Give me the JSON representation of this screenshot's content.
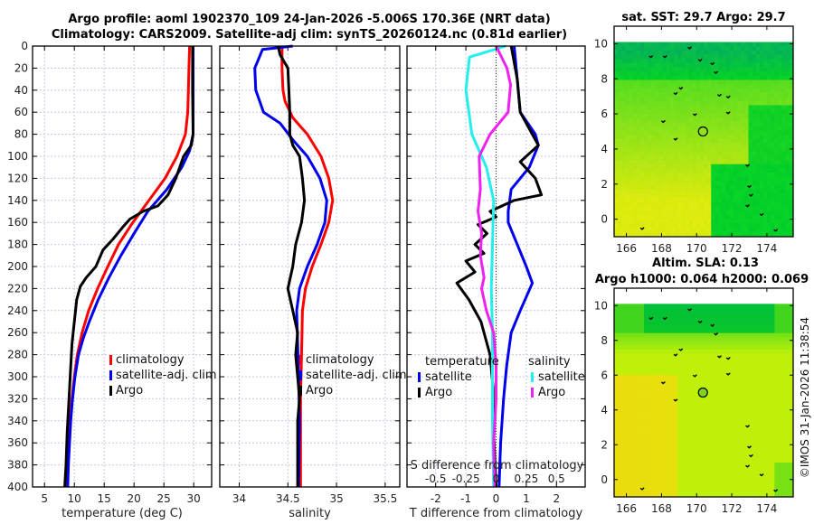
{
  "header": {
    "title_line1": "Argo profile: aoml 1902370_109 24-Jan-2026 -5.006S 170.36E (NRT data)",
    "title_line2": "Climatology: CARS2009. Satellite-adj clim: synTS_20260124.nc (0.81d earlier)"
  },
  "colors": {
    "climatology": "#ff0000",
    "satellite": "#0000ee",
    "argo": "#000000",
    "sal_satellite": "#22eeee",
    "sal_argo": "#ee22ee",
    "grid": "#c8c8e0"
  },
  "chart_data": [
    {
      "type": "line",
      "name": "temperature-profile",
      "xlabel": "temperature (deg C)",
      "ylabel": "",
      "xlim": [
        3,
        33
      ],
      "ylim": [
        400,
        0
      ],
      "xticks": [
        5,
        10,
        15,
        20,
        25,
        30
      ],
      "yticks": [
        0,
        20,
        40,
        60,
        80,
        100,
        120,
        140,
        160,
        180,
        200,
        220,
        240,
        260,
        280,
        300,
        320,
        340,
        360,
        380,
        400
      ],
      "grid": true,
      "legend": {
        "position": "center-right",
        "entries": [
          "climatology",
          "satellite-adj. clim",
          "Argo"
        ]
      },
      "series": [
        {
          "name": "climatology",
          "color_key": "climatology",
          "points": [
            [
              29.3,
              0
            ],
            [
              29.2,
              20
            ],
            [
              29.1,
              40
            ],
            [
              29.0,
              60
            ],
            [
              28.6,
              80
            ],
            [
              27.2,
              100
            ],
            [
              25.2,
              120
            ],
            [
              22.5,
              140
            ],
            [
              19.8,
              160
            ],
            [
              17.4,
              180
            ],
            [
              15.6,
              200
            ],
            [
              13.9,
              220
            ],
            [
              12.4,
              240
            ],
            [
              11.3,
              260
            ],
            [
              10.5,
              280
            ],
            [
              10.0,
              300
            ],
            [
              9.6,
              320
            ],
            [
              9.3,
              340
            ],
            [
              9.1,
              360
            ],
            [
              8.9,
              380
            ],
            [
              8.8,
              400
            ]
          ]
        },
        {
          "name": "satellite-adj. clim",
          "color_key": "satellite",
          "points": [
            [
              29.9,
              0
            ],
            [
              29.9,
              20
            ],
            [
              29.9,
              40
            ],
            [
              29.9,
              60
            ],
            [
              29.9,
              80
            ],
            [
              29.3,
              95
            ],
            [
              28.0,
              110
            ],
            [
              25.5,
              130
            ],
            [
              22.3,
              150
            ],
            [
              20.0,
              170
            ],
            [
              17.8,
              190
            ],
            [
              15.8,
              210
            ],
            [
              14.0,
              230
            ],
            [
              12.5,
              250
            ],
            [
              11.5,
              265
            ],
            [
              10.7,
              280
            ],
            [
              10.1,
              300
            ],
            [
              9.7,
              320
            ],
            [
              9.4,
              340
            ],
            [
              9.2,
              360
            ],
            [
              9.0,
              380
            ],
            [
              8.9,
              400
            ]
          ]
        },
        {
          "name": "Argo",
          "color_key": "argo",
          "points": [
            [
              29.8,
              0
            ],
            [
              29.8,
              40
            ],
            [
              29.9,
              80
            ],
            [
              29.6,
              90
            ],
            [
              28.3,
              100
            ],
            [
              27.0,
              120
            ],
            [
              25.7,
              135
            ],
            [
              24.0,
              145
            ],
            [
              21.5,
              150
            ],
            [
              19.3,
              157
            ],
            [
              18.0,
              165
            ],
            [
              16.5,
              175
            ],
            [
              14.8,
              185
            ],
            [
              13.6,
              200
            ],
            [
              12.0,
              210
            ],
            [
              11.0,
              218
            ],
            [
              10.4,
              230
            ],
            [
              10.0,
              250
            ],
            [
              9.6,
              270
            ],
            [
              9.3,
              300
            ],
            [
              9.1,
              320
            ],
            [
              8.8,
              350
            ],
            [
              8.6,
              380
            ],
            [
              8.4,
              400
            ]
          ]
        }
      ]
    },
    {
      "type": "line",
      "name": "salinity-profile",
      "xlabel": "salinity",
      "ylabel": "",
      "xlim": [
        33.8,
        35.65
      ],
      "ylim": [
        400,
        0
      ],
      "xticks": [
        34,
        34.5,
        35,
        35.5
      ],
      "xticklabels": [
        "34",
        "34.5",
        "35",
        "35.5"
      ],
      "grid": true,
      "legend": {
        "position": "center-right",
        "entries": [
          "climatology",
          "satellite-adj. clim",
          "Argo"
        ]
      },
      "series": [
        {
          "name": "climatology",
          "color_key": "climatology",
          "points": [
            [
              34.44,
              0
            ],
            [
              34.44,
              20
            ],
            [
              34.45,
              40
            ],
            [
              34.47,
              50
            ],
            [
              34.55,
              65
            ],
            [
              34.7,
              80
            ],
            [
              34.84,
              100
            ],
            [
              34.92,
              120
            ],
            [
              34.96,
              140
            ],
            [
              34.92,
              160
            ],
            [
              34.84,
              180
            ],
            [
              34.75,
              200
            ],
            [
              34.68,
              220
            ],
            [
              34.65,
              240
            ],
            [
              34.64,
              280
            ],
            [
              34.63,
              320
            ],
            [
              34.63,
              360
            ],
            [
              34.63,
              400
            ]
          ]
        },
        {
          "name": "satellite-adj. clim",
          "color_key": "satellite",
          "points": [
            [
              34.55,
              0
            ],
            [
              34.24,
              3
            ],
            [
              34.16,
              20
            ],
            [
              34.17,
              40
            ],
            [
              34.25,
              60
            ],
            [
              34.42,
              70
            ],
            [
              34.55,
              85
            ],
            [
              34.7,
              100
            ],
            [
              34.83,
              120
            ],
            [
              34.9,
              140
            ],
            [
              34.88,
              160
            ],
            [
              34.8,
              180
            ],
            [
              34.7,
              200
            ],
            [
              34.62,
              220
            ],
            [
              34.59,
              240
            ],
            [
              34.6,
              270
            ],
            [
              34.61,
              300
            ],
            [
              34.62,
              340
            ],
            [
              34.61,
              400
            ]
          ]
        },
        {
          "name": "Argo",
          "color_key": "argo",
          "points": [
            [
              34.4,
              0
            ],
            [
              34.42,
              8
            ],
            [
              34.5,
              20
            ],
            [
              34.51,
              40
            ],
            [
              34.52,
              60
            ],
            [
              34.52,
              80
            ],
            [
              34.55,
              90
            ],
            [
              34.62,
              100
            ],
            [
              34.65,
              120
            ],
            [
              34.67,
              140
            ],
            [
              34.64,
              160
            ],
            [
              34.58,
              180
            ],
            [
              34.55,
              200
            ],
            [
              34.5,
              220
            ],
            [
              34.55,
              240
            ],
            [
              34.6,
              260
            ],
            [
              34.58,
              280
            ],
            [
              34.6,
              300
            ],
            [
              34.62,
              320
            ],
            [
              34.6,
              340
            ],
            [
              34.6,
              400
            ]
          ]
        }
      ]
    },
    {
      "type": "line",
      "name": "difference-profile",
      "xlabel": "T difference from climatology",
      "xlabel_top": "S difference from climatology",
      "xlim": [
        -2.95,
        2.95
      ],
      "ylim": [
        400,
        0
      ],
      "xticks": [
        -2,
        -1,
        0,
        1,
        2
      ],
      "xticklabels": [
        "-2",
        "-1",
        "0",
        "1",
        "2"
      ],
      "s_xlim": [
        -0.738,
        0.738
      ],
      "s_xticks": [
        -0.5,
        -0.25,
        0,
        0.25,
        0.5
      ],
      "s_xticklabels": [
        "-0.5",
        "-0.25",
        "0",
        "0.25",
        "0.5"
      ],
      "grid": true,
      "zero_line": "dotted",
      "legend": {
        "position": "center",
        "groups": [
          {
            "heading": "temperature",
            "entries": [
              "satellite",
              "Argo"
            ]
          },
          {
            "heading": "salinity",
            "entries": [
              "satellite",
              "Argo"
            ]
          }
        ]
      },
      "series": [
        {
          "name": "temperature satellite",
          "axis": "T",
          "color_key": "satellite",
          "points": [
            [
              0.6,
              0
            ],
            [
              0.7,
              30
            ],
            [
              0.8,
              60
            ],
            [
              1.3,
              80
            ],
            [
              1.4,
              90
            ],
            [
              1.1,
              110
            ],
            [
              0.5,
              130
            ],
            [
              0.4,
              150
            ],
            [
              0.4,
              160
            ],
            [
              0.7,
              180
            ],
            [
              1.0,
              200
            ],
            [
              1.2,
              215
            ],
            [
              0.8,
              240
            ],
            [
              0.5,
              260
            ],
            [
              0.35,
              290
            ],
            [
              0.25,
              320
            ],
            [
              0.15,
              360
            ],
            [
              0.1,
              400
            ]
          ]
        },
        {
          "name": "temperature Argo",
          "axis": "T",
          "color_key": "argo",
          "points": [
            [
              0.5,
              0
            ],
            [
              0.7,
              30
            ],
            [
              0.8,
              60
            ],
            [
              1.2,
              80
            ],
            [
              1.4,
              90
            ],
            [
              0.8,
              105
            ],
            [
              1.3,
              120
            ],
            [
              1.5,
              135
            ],
            [
              0.6,
              140
            ],
            [
              -0.2,
              150
            ],
            [
              0.0,
              155
            ],
            [
              -0.6,
              162
            ],
            [
              -0.3,
              170
            ],
            [
              -0.7,
              180
            ],
            [
              -0.4,
              188
            ],
            [
              -1.0,
              195
            ],
            [
              -0.7,
              205
            ],
            [
              -1.3,
              215
            ],
            [
              -0.9,
              230
            ],
            [
              -0.5,
              250
            ],
            [
              -0.2,
              280
            ],
            [
              -0.1,
              310
            ],
            [
              -0.1,
              340
            ],
            [
              -0.05,
              370
            ],
            [
              0.0,
              400
            ]
          ]
        },
        {
          "name": "salinity satellite",
          "axis": "S",
          "color_key": "sal_satellite",
          "points": [
            [
              0.08,
              0
            ],
            [
              -0.22,
              10
            ],
            [
              -0.25,
              40
            ],
            [
              -0.2,
              80
            ],
            [
              -0.08,
              110
            ],
            [
              -0.02,
              140
            ],
            [
              -0.03,
              180
            ],
            [
              -0.04,
              220
            ],
            [
              -0.03,
              260
            ],
            [
              -0.03,
              300
            ],
            [
              -0.03,
              340
            ],
            [
              -0.02,
              400
            ]
          ]
        },
        {
          "name": "salinity Argo",
          "axis": "S",
          "color_key": "sal_argo",
          "points": [
            [
              0.0,
              0
            ],
            [
              0.09,
              20
            ],
            [
              0.12,
              35
            ],
            [
              0.1,
              60
            ],
            [
              -0.05,
              80
            ],
            [
              -0.14,
              100
            ],
            [
              -0.13,
              130
            ],
            [
              -0.15,
              150
            ],
            [
              -0.12,
              170
            ],
            [
              -0.13,
              190
            ],
            [
              -0.1,
              210
            ],
            [
              -0.12,
              220
            ],
            [
              -0.08,
              240
            ],
            [
              -0.02,
              260
            ],
            [
              0.0,
              290
            ],
            [
              0.0,
              320
            ],
            [
              -0.02,
              360
            ],
            [
              -0.01,
              400
            ]
          ]
        }
      ]
    },
    {
      "type": "heatmap",
      "name": "sst-map",
      "title": "sat. SST: 29.7 Argo: 29.7",
      "xlim": [
        165.3,
        175.5
      ],
      "ylim": [
        -1,
        11
      ],
      "data_top": 10.1,
      "xticks": [
        166,
        168,
        170,
        172,
        174
      ],
      "yticks": [
        0,
        2,
        4,
        6,
        8,
        10
      ],
      "argo_position": [
        170.36,
        5.0
      ],
      "argo_marker": "open-circle",
      "description": "SST field: teal-green north of ~8N, yellow-green southwest, dark green southeast"
    },
    {
      "type": "heatmap",
      "name": "sla-map",
      "title_line1": "Altim. SLA: 0.13",
      "title_line2": "Argo h1000: 0.064 h2000: 0.069",
      "xlim": [
        165.3,
        175.5
      ],
      "ylim": [
        -1,
        11
      ],
      "data_top": 10.1,
      "xticks": [
        166,
        168,
        170,
        172,
        174
      ],
      "yticks": [
        0,
        2,
        4,
        6,
        8,
        10
      ],
      "argo_position": [
        170.36,
        5.0
      ],
      "argo_marker": "filled-circle",
      "description": "SLA field: green north, yellow/orange south-west"
    }
  ],
  "footer": {
    "copyright": "©IMOS 31-Jan-2026 11:38:54"
  }
}
